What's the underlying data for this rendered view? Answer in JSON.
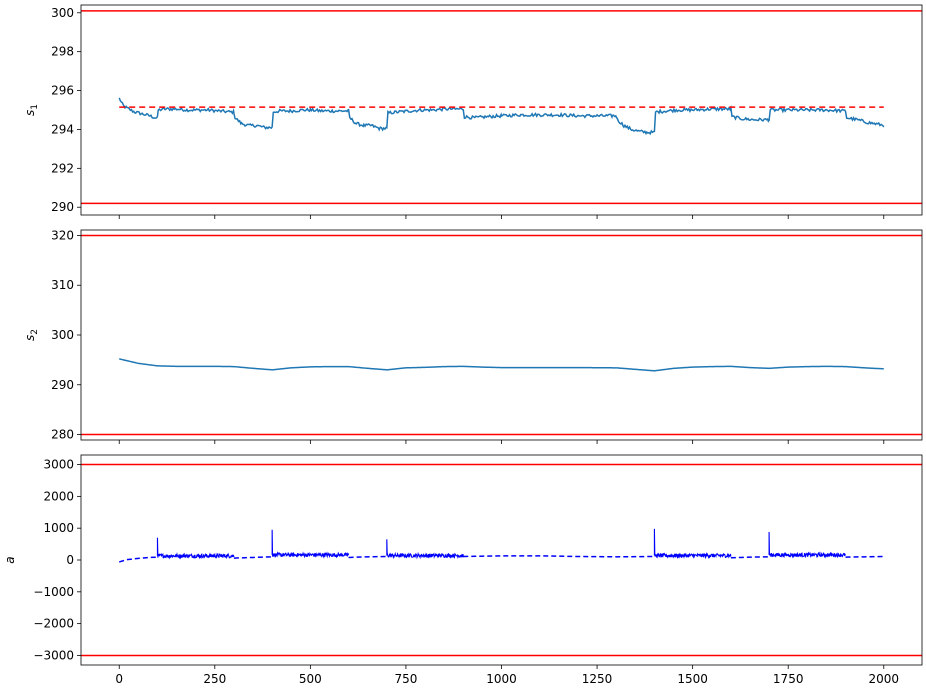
{
  "chart_data": [
    {
      "type": "line",
      "ylabel_main": "s",
      "ylabel_sub": "1",
      "xlim": [
        -100,
        2100
      ],
      "ylim": [
        289.6,
        300.4
      ],
      "xticks": [
        0,
        250,
        500,
        750,
        1000,
        1250,
        1500,
        1750,
        2000
      ],
      "yticks": [
        290,
        292,
        294,
        296,
        298,
        300
      ],
      "show_xticklabels": false,
      "hlines": [
        {
          "y": 300.1,
          "color": "#ff0000",
          "style": "solid"
        },
        {
          "y": 290.2,
          "color": "#ff0000",
          "style": "solid"
        },
        {
          "y": 295.15,
          "color": "#ff0000",
          "style": "dashed",
          "x": [
            0,
            2000
          ]
        }
      ],
      "series": [
        {
          "color": "#1f77b4",
          "style": "solid",
          "noise": 0.08,
          "x": [
            0,
            3,
            8,
            12,
            20,
            40,
            60,
            80,
            95,
            100,
            102,
            120,
            150,
            180,
            200,
            230,
            260,
            290,
            300,
            303,
            320,
            340,
            360,
            380,
            398,
            400,
            403,
            420,
            450,
            480,
            500,
            530,
            560,
            590,
            600,
            603,
            620,
            640,
            660,
            680,
            698,
            700,
            703,
            730,
            760,
            790,
            820,
            850,
            880,
            900,
            903,
            930,
            960,
            1000,
            1050,
            1100,
            1150,
            1200,
            1250,
            1290,
            1300,
            1303,
            1320,
            1340,
            1360,
            1380,
            1398,
            1400,
            1403,
            1430,
            1460,
            1500,
            1550,
            1598,
            1600,
            1603,
            1630,
            1660,
            1698,
            1700,
            1703,
            1730,
            1760,
            1800,
            1850,
            1898,
            1900,
            1903,
            1930,
            1960,
            1990,
            2000
          ],
          "y": [
            295.6,
            295.5,
            295.3,
            295.2,
            295.1,
            294.9,
            294.8,
            294.7,
            294.6,
            294.6,
            295.0,
            295.05,
            295.05,
            295.0,
            295.0,
            295.0,
            294.95,
            294.9,
            294.9,
            294.6,
            294.3,
            294.2,
            294.2,
            294.1,
            294.1,
            294.1,
            294.9,
            294.95,
            294.95,
            295.0,
            295.0,
            294.95,
            294.95,
            294.95,
            294.95,
            294.6,
            294.3,
            294.2,
            294.2,
            294.05,
            294.05,
            294.05,
            294.85,
            294.9,
            294.95,
            295.0,
            295.0,
            295.05,
            295.05,
            295.05,
            294.65,
            294.6,
            294.65,
            294.7,
            294.75,
            294.75,
            294.75,
            294.7,
            294.7,
            294.7,
            294.7,
            294.5,
            294.2,
            294.0,
            293.9,
            293.85,
            293.85,
            293.85,
            294.9,
            294.95,
            295.0,
            295.0,
            295.05,
            295.05,
            295.05,
            294.65,
            294.55,
            294.5,
            294.5,
            294.5,
            295.0,
            295.0,
            295.0,
            295.0,
            295.0,
            294.95,
            294.95,
            294.6,
            294.5,
            294.35,
            294.25,
            294.2
          ]
        }
      ]
    },
    {
      "type": "line",
      "ylabel_main": "s",
      "ylabel_sub": "2",
      "xlim": [
        -100,
        2100
      ],
      "ylim": [
        278.9,
        321.1
      ],
      "xticks": [
        0,
        250,
        500,
        750,
        1000,
        1250,
        1500,
        1750,
        2000
      ],
      "yticks": [
        280,
        290,
        300,
        310,
        320
      ],
      "show_xticklabels": false,
      "hlines": [
        {
          "y": 320,
          "color": "#ff0000",
          "style": "solid"
        },
        {
          "y": 280,
          "color": "#ff0000",
          "style": "solid"
        }
      ],
      "series": [
        {
          "color": "#1f77b4",
          "style": "solid",
          "noise": 0,
          "x": [
            0,
            50,
            100,
            150,
            200,
            250,
            300,
            350,
            400,
            450,
            500,
            550,
            600,
            650,
            700,
            750,
            800,
            850,
            900,
            950,
            1000,
            1100,
            1200,
            1300,
            1350,
            1400,
            1450,
            1500,
            1550,
            1600,
            1650,
            1700,
            1750,
            1800,
            1850,
            1900,
            1950,
            2000
          ],
          "y": [
            295.2,
            294.3,
            293.8,
            293.7,
            293.7,
            293.7,
            293.65,
            293.3,
            293.0,
            293.4,
            293.6,
            293.65,
            293.65,
            293.3,
            293.0,
            293.4,
            293.5,
            293.65,
            293.7,
            293.55,
            293.45,
            293.45,
            293.45,
            293.4,
            293.1,
            292.8,
            293.3,
            293.55,
            293.65,
            293.7,
            293.45,
            293.3,
            293.55,
            293.65,
            293.7,
            293.65,
            293.4,
            293.2
          ]
        }
      ]
    },
    {
      "type": "line",
      "ylabel_main": "a",
      "ylabel_sub": "",
      "xlim": [
        -100,
        2100
      ],
      "ylim": [
        -3300,
        3300
      ],
      "xticks": [
        0,
        250,
        500,
        750,
        1000,
        1250,
        1500,
        1750,
        2000
      ],
      "yticks": [
        -3000,
        -2000,
        -1000,
        0,
        1000,
        2000,
        3000
      ],
      "xticklabels": [
        "0",
        "250",
        "500",
        "750",
        "1000",
        "1250",
        "1500",
        "1750",
        "2000"
      ],
      "yticklabels": [
        "−3000",
        "−2000",
        "−1000",
        "0",
        "1000",
        "2000",
        "3000"
      ],
      "show_xticklabels": true,
      "hlines": [
        {
          "y": 3000,
          "color": "#ff0000",
          "style": "solid"
        },
        {
          "y": -3000,
          "color": "#ff0000",
          "style": "solid"
        }
      ],
      "series": [
        {
          "color": "#0000ff",
          "style": "dashed",
          "noise": 0,
          "segments": [
            {
              "x": [
                0,
                20,
                50,
                80,
                100
              ],
              "y": [
                -60,
                10,
                50,
                80,
                90
              ]
            },
            {
              "x": [
                300,
                350,
                400
              ],
              "y": [
                60,
                80,
                100
              ]
            },
            {
              "x": [
                600,
                650,
                700
              ],
              "y": [
                80,
                100,
                110
              ]
            },
            {
              "x": [
                900,
                1000,
                1100,
                1200,
                1300,
                1400
              ],
              "y": [
                110,
                130,
                130,
                110,
                100,
                110
              ]
            },
            {
              "x": [
                1600,
                1650,
                1700
              ],
              "y": [
                70,
                90,
                100
              ]
            },
            {
              "x": [
                1900,
                1950,
                2000
              ],
              "y": [
                90,
                100,
                110
              ]
            }
          ]
        },
        {
          "color": "#0000ff",
          "style": "solid",
          "noise": 60,
          "bursts": [
            {
              "x0": 100,
              "x1": 300,
              "base": 130,
              "spike": 700
            },
            {
              "x0": 400,
              "x1": 600,
              "base": 160,
              "spike": 950
            },
            {
              "x0": 700,
              "x1": 900,
              "base": 140,
              "spike": 650
            },
            {
              "x0": 1400,
              "x1": 1600,
              "base": 140,
              "spike": 980
            },
            {
              "x0": 1700,
              "x1": 1900,
              "base": 160,
              "spike": 880
            }
          ]
        }
      ]
    }
  ]
}
